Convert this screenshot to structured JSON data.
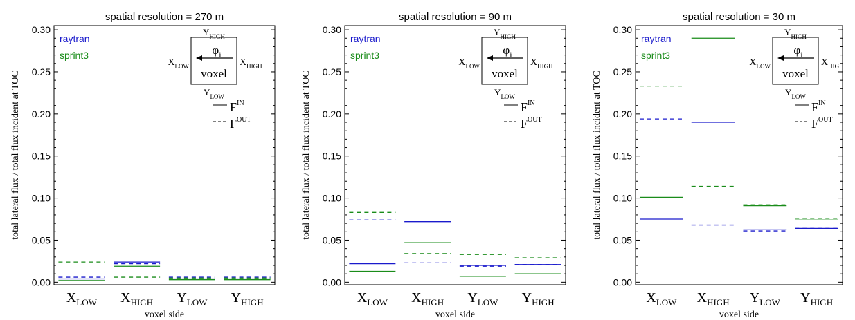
{
  "chart_data": [
    {
      "type": "step",
      "title": "spatial resolution = 270 m",
      "xlabel": "voxel side",
      "ylabel": "total lateral flux / total flux incident at TOC",
      "ylim": [
        -0.003,
        0.305
      ],
      "categories": [
        {
          "main": "X",
          "sub": "LOW"
        },
        {
          "main": "X",
          "sub": "HIGH"
        },
        {
          "main": "Y",
          "sub": "LOW"
        },
        {
          "main": "Y",
          "sub": "HIGH"
        }
      ],
      "yticks": [
        "0.00",
        "0.05",
        "0.10",
        "0.15",
        "0.20",
        "0.25",
        "0.30"
      ],
      "series": [
        {
          "model": "raytran",
          "flux": "IN",
          "color": "#1a1acc",
          "dash": false,
          "values": [
            0.004,
            0.024,
            0.004,
            0.004
          ]
        },
        {
          "model": "raytran",
          "flux": "OUT",
          "color": "#1a1acc",
          "dash": true,
          "values": [
            0.006,
            0.022,
            0.006,
            0.006
          ]
        },
        {
          "model": "sprint3",
          "flux": "IN",
          "color": "#1a8c1a",
          "dash": false,
          "values": [
            0.002,
            0.019,
            0.003,
            0.003
          ]
        },
        {
          "model": "sprint3",
          "flux": "OUT",
          "color": "#1a8c1a",
          "dash": true,
          "values": [
            0.024,
            0.006,
            0.005,
            0.005
          ]
        }
      ]
    },
    {
      "type": "step",
      "title": "spatial resolution = 90 m",
      "xlabel": "voxel side",
      "ylabel": "total lateral flux / total flux incident at TOC",
      "ylim": [
        -0.003,
        0.305
      ],
      "categories": [
        {
          "main": "X",
          "sub": "LOW"
        },
        {
          "main": "X",
          "sub": "HIGH"
        },
        {
          "main": "Y",
          "sub": "LOW"
        },
        {
          "main": "Y",
          "sub": "HIGH"
        }
      ],
      "yticks": [
        "0.00",
        "0.05",
        "0.10",
        "0.15",
        "0.20",
        "0.25",
        "0.30"
      ],
      "series": [
        {
          "model": "raytran",
          "flux": "IN",
          "color": "#1a1acc",
          "dash": false,
          "values": [
            0.022,
            0.072,
            0.02,
            0.021
          ]
        },
        {
          "model": "raytran",
          "flux": "OUT",
          "color": "#1a1acc",
          "dash": true,
          "values": [
            0.074,
            0.023,
            0.019,
            0.021
          ]
        },
        {
          "model": "sprint3",
          "flux": "IN",
          "color": "#1a8c1a",
          "dash": false,
          "values": [
            0.013,
            0.047,
            0.007,
            0.01
          ]
        },
        {
          "model": "sprint3",
          "flux": "OUT",
          "color": "#1a8c1a",
          "dash": true,
          "values": [
            0.083,
            0.034,
            0.033,
            0.029
          ]
        }
      ]
    },
    {
      "type": "step",
      "title": "spatial resolution = 30 m",
      "xlabel": "voxel side",
      "ylabel": "total lateral flux / total flux incident at TOC",
      "ylim": [
        -0.003,
        0.305
      ],
      "categories": [
        {
          "main": "X",
          "sub": "LOW"
        },
        {
          "main": "X",
          "sub": "HIGH"
        },
        {
          "main": "Y",
          "sub": "LOW"
        },
        {
          "main": "Y",
          "sub": "HIGH"
        }
      ],
      "yticks": [
        "0.00",
        "0.05",
        "0.10",
        "0.15",
        "0.20",
        "0.25",
        "0.30"
      ],
      "series": [
        {
          "model": "raytran",
          "flux": "IN",
          "color": "#1a1acc",
          "dash": false,
          "values": [
            0.075,
            0.19,
            0.063,
            0.064
          ]
        },
        {
          "model": "raytran",
          "flux": "OUT",
          "color": "#1a1acc",
          "dash": true,
          "values": [
            0.194,
            0.068,
            0.061,
            0.064
          ]
        },
        {
          "model": "sprint3",
          "flux": "IN",
          "color": "#1a8c1a",
          "dash": false,
          "values": [
            0.101,
            0.29,
            0.091,
            0.074
          ]
        },
        {
          "model": "sprint3",
          "flux": "OUT",
          "color": "#1a8c1a",
          "dash": true,
          "values": [
            0.233,
            0.114,
            0.092,
            0.076
          ]
        }
      ]
    }
  ],
  "legend": {
    "models": [
      {
        "name": "raytran",
        "color": "#1a1acc"
      },
      {
        "name": "sprint3",
        "color": "#1a8c1a"
      }
    ],
    "flux_in": {
      "main": "F",
      "sup": "IN"
    },
    "flux_out": {
      "main": "F",
      "sup": "OUT"
    }
  },
  "voxel_inset": {
    "label": "voxel",
    "angle": {
      "main": "φ",
      "sub": "i"
    },
    "top": {
      "main": "Y",
      "sub": "HIGH"
    },
    "bottom": {
      "main": "Y",
      "sub": "LOW"
    },
    "left": {
      "main": "X",
      "sub": "LOW"
    },
    "right": {
      "main": "X",
      "sub": "HIGH"
    }
  }
}
